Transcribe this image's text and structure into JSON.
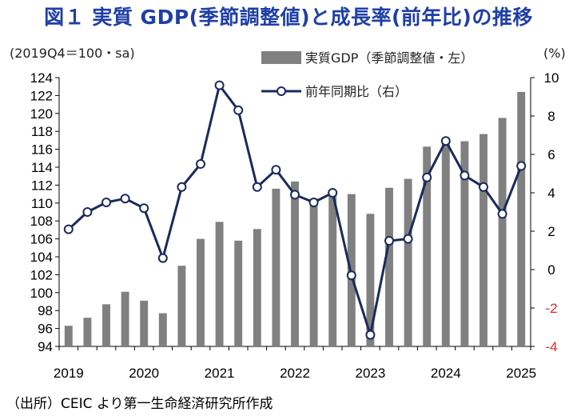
{
  "title": "図１ 実質 GDP(季節調整値)と成長率(前年比)の推移",
  "source": "（出所）CEIC より第一生命経済研究所作成",
  "chart_data": {
    "type": "bar+line",
    "left_axis_label": "(2019Q4＝100・sa)",
    "right_axis_label": "(%)",
    "left_ylim": [
      94,
      124
    ],
    "left_ticks": [
      "94",
      "96",
      "98",
      "100",
      "102",
      "104",
      "106",
      "108",
      "110",
      "112",
      "114",
      "116",
      "118",
      "120",
      "122",
      "124"
    ],
    "right_ylim": [
      -4,
      10
    ],
    "right_ticks": [
      "-4",
      "-2",
      "0",
      "2",
      "4",
      "6",
      "8",
      "10"
    ],
    "x_labels": [
      "2019",
      "2020",
      "2021",
      "2022",
      "2023",
      "2024",
      "2025"
    ],
    "bar_color": "#808080",
    "line_color": "#1a2a5c",
    "negative_tick_color": "#e8252a",
    "series": [
      {
        "name": "実質GDP（季節調整値・左）",
        "axis": "left",
        "values": [
          96.3,
          97.2,
          98.7,
          100.1,
          99.1,
          97.7,
          103.0,
          106.0,
          107.9,
          105.8,
          107.1,
          111.6,
          112.4,
          110.5,
          111.2,
          111.0,
          108.8,
          111.7,
          112.7,
          116.3,
          116.8,
          116.9,
          117.7,
          119.5,
          122.4
        ]
      },
      {
        "name": "前年同期比（右）",
        "axis": "right",
        "values": [
          2.1,
          3.0,
          3.5,
          3.7,
          3.2,
          0.6,
          4.3,
          5.5,
          9.6,
          8.3,
          4.3,
          5.2,
          3.9,
          3.5,
          4.0,
          -0.3,
          -3.4,
          1.5,
          1.6,
          4.8,
          6.7,
          4.9,
          4.3,
          2.9,
          5.4
        ]
      }
    ],
    "legend_position": "top-right",
    "grid": false
  }
}
